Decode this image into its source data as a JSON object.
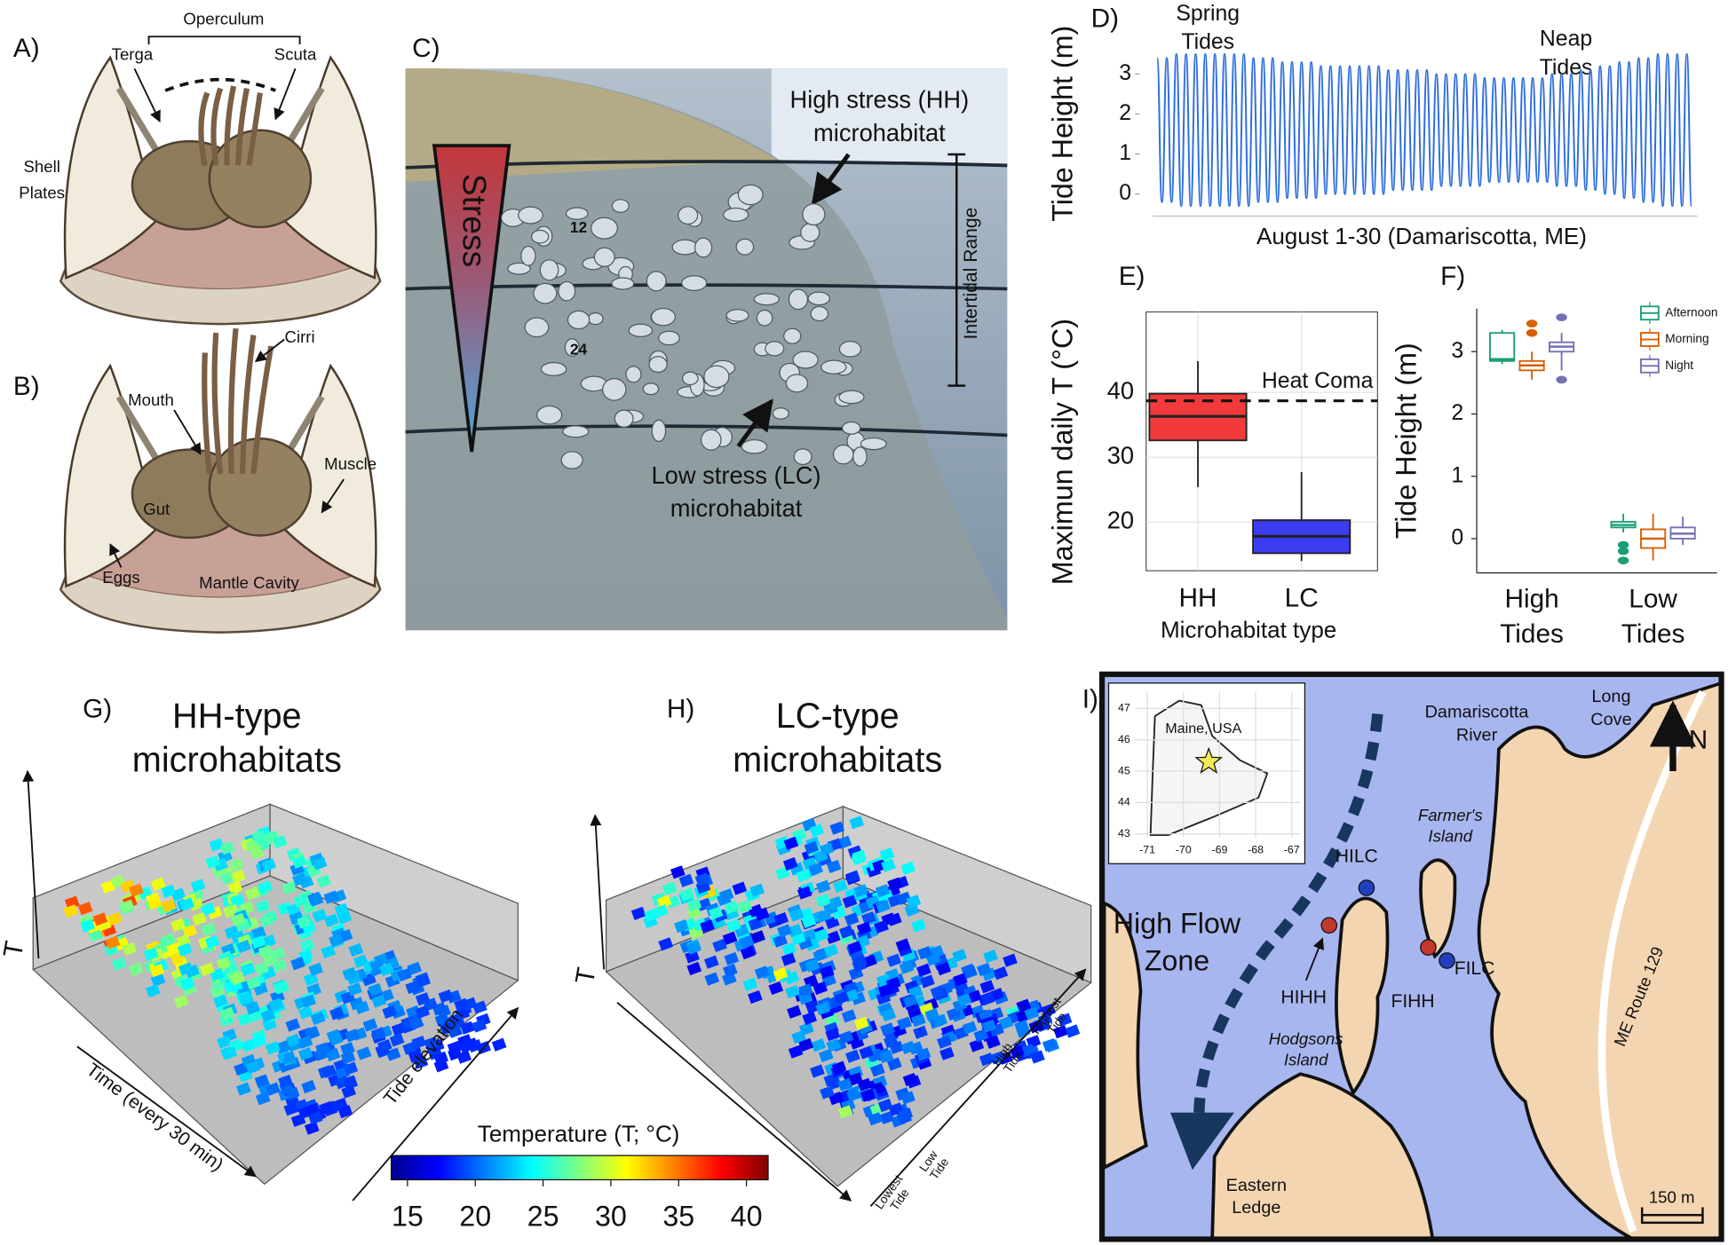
{
  "panel_a": {
    "label": "A)",
    "operculum": "Operculum",
    "terga": "Terga",
    "scuta": "Scuta",
    "shell_plates": [
      "Shell",
      "Plates"
    ]
  },
  "panel_b": {
    "label": "B)",
    "cirri": "Cirri",
    "mouth": "Mouth",
    "muscle": "Muscle",
    "gut": "Gut",
    "eggs": "Eggs",
    "mantle_cavity": "Mantle Cavity"
  },
  "panel_c": {
    "label": "C)",
    "stress": "Stress",
    "high_stress": [
      "High stress (HH)",
      "microhabitat"
    ],
    "intertidal_range": "Intertidal Range",
    "low_stress": [
      "Low stress (LC)",
      "microhabitat"
    ],
    "depth_marks": [
      "12",
      "24"
    ]
  },
  "chart_data": [
    {
      "type": "line",
      "label": "D)",
      "ylabel": "Tide Height (m)",
      "xlabel": "August 1-30 (Damariscotta, ME)",
      "annotations": [
        [
          "Spring",
          "Tides"
        ],
        [
          "Neap",
          "Tides"
        ]
      ],
      "color": "#2f6fde",
      "ylim": [
        -0.4,
        3.7
      ],
      "yticks": [
        0,
        1,
        2,
        3
      ],
      "values": [
        3.4,
        -0.2,
        3.4,
        -0.2,
        3.5,
        -0.3,
        3.5,
        -0.3,
        3.5,
        -0.3,
        3.5,
        -0.3,
        3.5,
        -0.3,
        3.5,
        -0.3,
        3.5,
        -0.3,
        3.5,
        -0.3,
        3.4,
        -0.2,
        3.4,
        -0.2,
        3.4,
        -0.2,
        3.3,
        -0.1,
        3.3,
        -0.1,
        3.3,
        -0.1,
        3.3,
        -0.1,
        3.2,
        0.0,
        3.2,
        0.0,
        3.2,
        0.0,
        3.2,
        0.0,
        3.2,
        0.0,
        3.2,
        0.0,
        3.2,
        0.0,
        3.1,
        0.1,
        3.1,
        0.1,
        3.1,
        0.1,
        3.1,
        0.1,
        3.1,
        0.1,
        3.0,
        0.2,
        3.0,
        0.2,
        3.0,
        0.2,
        3.0,
        0.2,
        3.0,
        0.2,
        2.9,
        0.3,
        2.9,
        0.3,
        2.9,
        0.3,
        2.9,
        0.3,
        2.9,
        0.3,
        2.9,
        0.3,
        2.9,
        0.3,
        3.0,
        0.2,
        3.0,
        0.2,
        3.0,
        0.2,
        3.1,
        0.1,
        3.1,
        0.1,
        3.2,
        0.0,
        3.2,
        0.0,
        3.3,
        -0.1,
        3.3,
        -0.1,
        3.4,
        -0.2,
        3.4,
        -0.2,
        3.5,
        -0.3,
        3.5,
        -0.3,
        3.5,
        -0.3,
        3.5,
        -0.3
      ]
    },
    {
      "type": "box",
      "label": "E)",
      "ylabel": "Maximun daily T (°C)",
      "xlabel": "Microhabitat type",
      "categories": [
        "HH",
        "LC"
      ],
      "colors": [
        "#f23a3a",
        "#3c3cf2"
      ],
      "ylim": [
        12.5,
        52.4
      ],
      "yticks": [
        20,
        30,
        40
      ],
      "grid": true,
      "boxes": [
        {
          "min": 25.4,
          "q1": 32.6,
          "median": 36.3,
          "q3": 39.8,
          "max": 44.8
        },
        {
          "min": 14,
          "q1": 15.2,
          "median": 17.8,
          "q3": 20.3,
          "max": 27.7
        }
      ],
      "reference_line": {
        "value": 38.7,
        "label": "Heat Coma"
      }
    },
    {
      "type": "box",
      "label": "F)",
      "ylabel": "Tide Height (m)",
      "categories": [
        [
          "High",
          "Tides"
        ],
        [
          "Low",
          "Tides"
        ]
      ],
      "ylim": [
        -0.55,
        3.69
      ],
      "yticks": [
        0,
        1,
        2,
        3
      ],
      "legend": "top-right",
      "series": [
        {
          "name": "Afternoon",
          "color": "#1b9e77",
          "boxes": [
            {
              "min": 2.8,
              "q1": 2.85,
              "median": 2.88,
              "q3": 3.3,
              "max": 3.35,
              "outliers": []
            },
            {
              "min": 0.1,
              "q1": 0.18,
              "median": 0.22,
              "q3": 0.27,
              "max": 0.4,
              "outliers": [
                -0.1,
                -0.2,
                -0.35
              ]
            }
          ]
        },
        {
          "name": "Morning",
          "color": "#d95f02",
          "boxes": [
            {
              "min": 2.55,
              "q1": 2.7,
              "median": 2.78,
              "q3": 2.85,
              "max": 3.0,
              "outliers": [
                3.3,
                3.45
              ]
            },
            {
              "min": -0.35,
              "q1": -0.15,
              "median": 0.0,
              "q3": 0.15,
              "max": 0.4,
              "outliers": []
            }
          ]
        },
        {
          "name": "Night",
          "color": "#7570b3",
          "boxes": [
            {
              "min": 2.7,
              "q1": 3.0,
              "median": 3.08,
              "q3": 3.15,
              "max": 3.3,
              "outliers": [
                2.55,
                3.55
              ]
            },
            {
              "min": -0.1,
              "q1": 0.0,
              "median": 0.08,
              "q3": 0.18,
              "max": 0.35,
              "outliers": []
            }
          ]
        }
      ]
    }
  ],
  "panel_g": {
    "label": "G)",
    "title": [
      "HH-type",
      "microhabitats"
    ],
    "z_axis": "T",
    "x_axis": "Time (every 30 min)",
    "y_axis": "Tide elevation"
  },
  "panel_h": {
    "label": "H)",
    "title": [
      "LC-type",
      "microhabitats"
    ],
    "z_axis": "T",
    "tide_labels": [
      [
        "Lowest",
        "Tide"
      ],
      [
        "Low",
        "Tide"
      ],
      [
        "High",
        "Tide"
      ],
      [
        "Highest",
        "Tide"
      ]
    ]
  },
  "colorbar": {
    "title": "Temperature (T; °C)",
    "lim": [
      13.8,
      41.6
    ],
    "ticks": [
      15,
      20,
      25,
      30,
      35,
      40
    ]
  },
  "panel_i": {
    "label": "I)",
    "river": [
      "Damariscotta",
      "River"
    ],
    "long_cove": [
      "Long",
      "Cove"
    ],
    "north": "N",
    "farmers_island": [
      "Farmer's",
      "Island"
    ],
    "high_flow_zone": [
      "High Flow",
      "Zone"
    ],
    "sites": [
      "HILC",
      "HIHH",
      "FIHH",
      "FILC"
    ],
    "hodgsons_island": [
      "Hodgsons",
      "Island"
    ],
    "route": "ME Route 129",
    "eastern_ledge": [
      "Eastern",
      "Ledge"
    ],
    "scale_bar": "150 m",
    "inset": {
      "label": "Maine, USA",
      "xlim": [
        -71.34,
        -66.76
      ],
      "ylim": [
        42.89,
        47.53
      ],
      "xticks": [
        -71,
        -70,
        -69,
        -68,
        -67
      ],
      "yticks": [
        43,
        44,
        45,
        46,
        47
      ],
      "site": {
        "lon": -69.3,
        "lat": 45.3
      }
    }
  }
}
